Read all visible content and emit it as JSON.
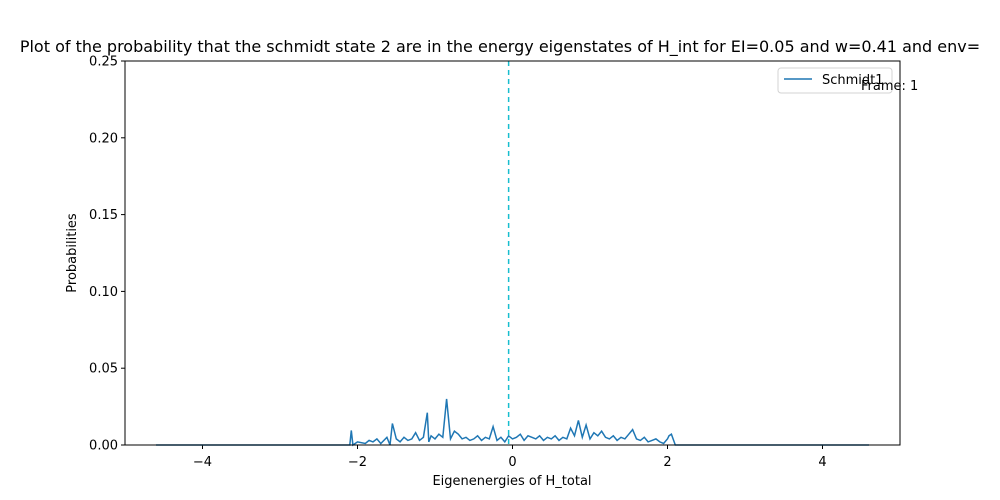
{
  "chart_data": {
    "type": "line",
    "title": "Plot of the probability that the schmidt state 2  are in the energy eigenstates of H_int for EI=0.05 and w=0.41 and env=",
    "xlabel": "Eigenenergies of H_total",
    "ylabel": "Probabilities",
    "xlim": [
      -5.0,
      5.0
    ],
    "ylim": [
      0,
      0.25
    ],
    "xticks": [
      -4,
      -2,
      0,
      2,
      4
    ],
    "xtick_labels": [
      "−4",
      "−2",
      "0",
      "2",
      "4"
    ],
    "yticks": [
      0.0,
      0.05,
      0.1,
      0.15,
      0.2,
      0.25
    ],
    "ytick_labels": [
      "0.00",
      "0.05",
      "0.10",
      "0.15",
      "0.20",
      "0.25"
    ],
    "legend_position": "top-right",
    "grid": false,
    "frame_label": "Frame: 1",
    "vline": {
      "x": -0.05,
      "color": "#17becf",
      "style": "dashed"
    },
    "series": [
      {
        "name": "Schmidt1",
        "color": "#1f77b4",
        "x": [
          -4.6,
          -2.1,
          -2.08,
          -2.06,
          -2.0,
          -1.9,
          -1.85,
          -1.8,
          -1.75,
          -1.7,
          -1.62,
          -1.58,
          -1.55,
          -1.5,
          -1.45,
          -1.4,
          -1.35,
          -1.3,
          -1.25,
          -1.2,
          -1.15,
          -1.1,
          -1.08,
          -1.05,
          -1.0,
          -0.95,
          -0.9,
          -0.85,
          -0.8,
          -0.75,
          -0.7,
          -0.65,
          -0.6,
          -0.55,
          -0.5,
          -0.45,
          -0.4,
          -0.35,
          -0.3,
          -0.25,
          -0.2,
          -0.15,
          -0.1,
          -0.05,
          0.0,
          0.05,
          0.1,
          0.15,
          0.2,
          0.25,
          0.3,
          0.35,
          0.4,
          0.45,
          0.5,
          0.55,
          0.6,
          0.65,
          0.7,
          0.75,
          0.8,
          0.85,
          0.9,
          0.95,
          1.0,
          1.05,
          1.1,
          1.15,
          1.2,
          1.25,
          1.3,
          1.35,
          1.4,
          1.45,
          1.5,
          1.55,
          1.6,
          1.65,
          1.7,
          1.75,
          1.8,
          1.85,
          1.9,
          1.95,
          2.0,
          2.02,
          2.05,
          2.1,
          4.6
        ],
        "y": [
          0.0,
          0.0,
          0.0095,
          0.0,
          0.002,
          0.001,
          0.003,
          0.002,
          0.004,
          0.001,
          0.005,
          0.0,
          0.014,
          0.004,
          0.002,
          0.005,
          0.003,
          0.004,
          0.008,
          0.003,
          0.005,
          0.021,
          0.002,
          0.006,
          0.004,
          0.007,
          0.005,
          0.03,
          0.004,
          0.009,
          0.007,
          0.004,
          0.005,
          0.003,
          0.004,
          0.006,
          0.003,
          0.005,
          0.004,
          0.012,
          0.003,
          0.005,
          0.002,
          0.006,
          0.004,
          0.005,
          0.007,
          0.003,
          0.006,
          0.005,
          0.004,
          0.006,
          0.003,
          0.005,
          0.004,
          0.006,
          0.003,
          0.005,
          0.004,
          0.011,
          0.006,
          0.016,
          0.005,
          0.013,
          0.004,
          0.008,
          0.006,
          0.009,
          0.005,
          0.004,
          0.006,
          0.003,
          0.005,
          0.004,
          0.007,
          0.01,
          0.004,
          0.003,
          0.005,
          0.002,
          0.003,
          0.004,
          0.002,
          0.001,
          0.004,
          0.006,
          0.007,
          0.0,
          0.0
        ]
      }
    ]
  }
}
